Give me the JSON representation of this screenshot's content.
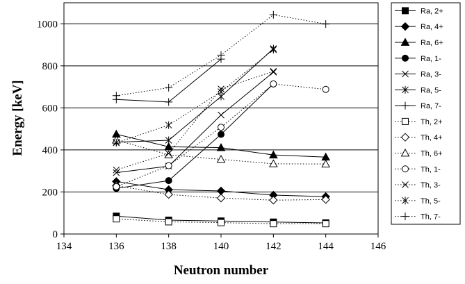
{
  "chart_data": {
    "type": "line",
    "title": "",
    "xlabel": "Neutron number",
    "ylabel": "Energy [keV]",
    "xlim": [
      134,
      146
    ],
    "ylim": [
      0,
      1100
    ],
    "xticks": [
      "134",
      "136",
      "138",
      "140",
      "142",
      "144",
      "146"
    ],
    "yticks": [
      "0",
      "200",
      "400",
      "600",
      "800",
      "1000"
    ],
    "grid": "horizontal major lines",
    "legend_position": "right",
    "series": [
      {
        "name": "Ra, 2+",
        "marker": "square-filled",
        "dash": "solid",
        "x": [
          136,
          138,
          140,
          142,
          144
        ],
        "y": [
          85,
          66,
          62,
          57,
          53
        ]
      },
      {
        "name": "Ra, 4+",
        "marker": "diamond-filled",
        "dash": "solid",
        "x": [
          136,
          138,
          140,
          142,
          144
        ],
        "y": [
          250,
          211,
          205,
          185,
          178
        ]
      },
      {
        "name": "Ra, 6+",
        "marker": "triangle-filled",
        "dash": "solid",
        "x": [
          136,
          138,
          140,
          142,
          144
        ],
        "y": [
          475,
          415,
          411,
          376,
          366
        ]
      },
      {
        "name": "Ra, 1-",
        "marker": "circle-filled",
        "dash": "solid",
        "x": [
          136,
          138,
          140,
          142
        ],
        "y": [
          217,
          254,
          474,
          714
        ]
      },
      {
        "name": "Ra, 3-",
        "marker": "x",
        "dash": "solid",
        "x": [
          136,
          138,
          140,
          142
        ],
        "y": [
          292,
          323,
          566,
          770
        ]
      },
      {
        "name": "Ra, 5-",
        "marker": "asterisk",
        "dash": "solid",
        "x": [
          136,
          138,
          140,
          142
        ],
        "y": [
          437,
          446,
          654,
          882
        ]
      },
      {
        "name": "Ra, 7-",
        "marker": "plus",
        "dash": "solid",
        "x": [
          136,
          138,
          140
        ],
        "y": [
          640,
          628,
          832
        ]
      },
      {
        "name": "Th, 2+",
        "marker": "square-open",
        "dash": "dotted",
        "x": [
          136,
          138,
          140,
          142,
          144
        ],
        "y": [
          72,
          58,
          54,
          49,
          49
        ]
      },
      {
        "name": "Th, 4+",
        "marker": "diamond-open",
        "dash": "dotted",
        "x": [
          136,
          138,
          140,
          142,
          144
        ],
        "y": [
          230,
          188,
          171,
          161,
          164
        ]
      },
      {
        "name": "Th, 6+",
        "marker": "triangle-open",
        "dash": "dotted",
        "x": [
          136,
          138,
          140,
          142,
          144
        ],
        "y": [
          447,
          377,
          355,
          334,
          333
        ]
      },
      {
        "name": "Th, 1-",
        "marker": "circle-open",
        "dash": "dotted",
        "x": [
          136,
          138,
          140,
          142,
          144
        ],
        "y": [
          225,
          325,
          508,
          714,
          688
        ]
      },
      {
        "name": "Th, 3-",
        "marker": "x",
        "dash": "dotted",
        "x": [
          136,
          138,
          140,
          142
        ],
        "y": [
          305,
          383,
          690,
          774
        ]
      },
      {
        "name": "Th, 5-",
        "marker": "asterisk",
        "dash": "dotted",
        "x": [
          136,
          138,
          140,
          142
        ],
        "y": [
          434,
          518,
          677,
          877
        ]
      },
      {
        "name": "Th, 7-",
        "marker": "plus",
        "dash": "dotted",
        "x": [
          136,
          138,
          140,
          142,
          144
        ],
        "y": [
          658,
          696,
          851,
          1043,
          999
        ]
      }
    ]
  }
}
